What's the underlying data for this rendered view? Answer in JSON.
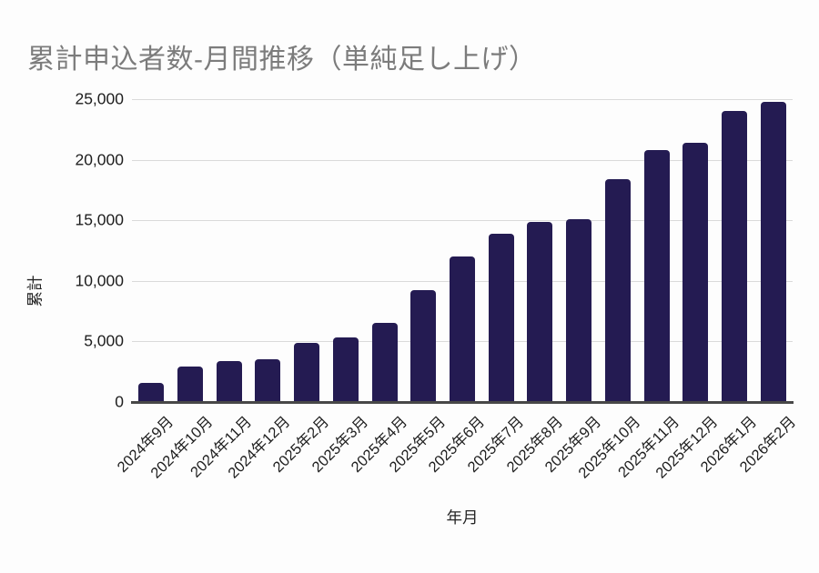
{
  "chart_data": {
    "type": "bar",
    "title": "累計申込者数-月間推移（単純足し上げ）",
    "xlabel": "年月",
    "ylabel": "累計",
    "categories": [
      "2024年9月",
      "2024年10月",
      "2024年11月",
      "2024年12月",
      "2025年2月",
      "2025年3月",
      "2025年4月",
      "2025年5月",
      "2025年6月",
      "2025年7月",
      "2025年8月",
      "2025年9月",
      "2025年10月",
      "2025年11月",
      "2025年12月",
      "2026年1月",
      "2026年2月"
    ],
    "values": [
      1600,
      2950,
      3400,
      3550,
      4900,
      5300,
      6500,
      9200,
      12000,
      13900,
      14900,
      15100,
      18400,
      20800,
      21400,
      24000,
      24800
    ],
    "ylim": [
      0,
      25000
    ],
    "yticks": [
      0,
      5000,
      10000,
      15000,
      20000,
      25000
    ],
    "ytick_labels": [
      "0",
      "5,000",
      "10,000",
      "15,000",
      "20,000",
      "25,000"
    ],
    "grid": true,
    "legend": "none",
    "colors": {
      "bar": "#241b52",
      "gridline": "#dadada",
      "axis_line": "#484848",
      "title_text": "#7c7c7c",
      "tick_text": "#1e1e1e",
      "axis_title_text": "#262626",
      "background": "#fdfdfd"
    }
  }
}
